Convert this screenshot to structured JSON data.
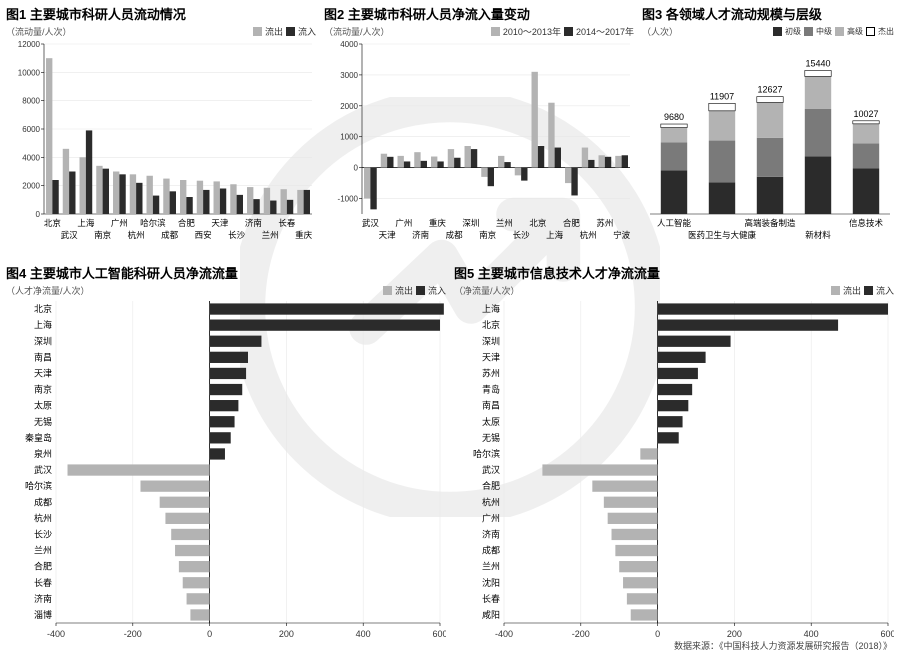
{
  "colors": {
    "light": "#b3b3b3",
    "dark": "#2b2b2b",
    "mid": "#7a7a7a",
    "outline": "#000000",
    "bg": "#ffffff",
    "grid": "#e8e8e8",
    "text": "#000000"
  },
  "fig1": {
    "title": "图1 主要城市科研人员流动情况",
    "ylabel": "（流动量/人次）",
    "legend": {
      "out": "流出",
      "in": "流入"
    },
    "ylim": [
      0,
      12000
    ],
    "ytick_step": 2000,
    "bar_width": 0.38,
    "categories": [
      "北京",
      "武汉",
      "上海",
      "南京",
      "广州",
      "杭州",
      "哈尔滨",
      "成都",
      "合肥",
      "西安",
      "天津",
      "长沙",
      "济南",
      "兰州",
      "长春",
      "重庆"
    ],
    "out": [
      11000,
      4600,
      4000,
      3400,
      3000,
      2800,
      2700,
      2500,
      2400,
      2350,
      2300,
      2100,
      1900,
      1850,
      1750,
      1700
    ],
    "in": [
      2400,
      3000,
      5900,
      3200,
      2800,
      2200,
      1300,
      1600,
      1200,
      1700,
      1800,
      1350,
      1050,
      950,
      1000,
      1700
    ]
  },
  "fig2": {
    "title": "图2 主要城市科研人员净流入量变动",
    "ylabel": "（流动量/人次）",
    "legend": {
      "a": "2010～2013年",
      "b": "2014～2017年"
    },
    "ylim": [
      -1500,
      4000
    ],
    "ytick_step": 1000,
    "yticks": [
      -1000,
      0,
      1000,
      2000,
      3000,
      4000
    ],
    "bar_width": 0.38,
    "categories": [
      "武汉",
      "天津",
      "广州",
      "济南",
      "重庆",
      "成都",
      "深圳",
      "南京",
      "兰州",
      "长沙",
      "北京",
      "上海",
      "合肥",
      "杭州",
      "苏州",
      "宁波"
    ],
    "a": [
      -1000,
      450,
      380,
      500,
      360,
      600,
      700,
      -300,
      380,
      -250,
      3100,
      2100,
      -500,
      650,
      400,
      380
    ],
    "b": [
      -1350,
      350,
      200,
      220,
      200,
      320,
      600,
      -600,
      180,
      -420,
      700,
      650,
      -900,
      250,
      350,
      400
    ]
  },
  "fig3": {
    "title": "图3  各领域人才流动规模与层级",
    "ylabel": "（人次）",
    "legend": {
      "l1": "初级",
      "l2": "中级",
      "l3": "高级",
      "l4": "杰出"
    },
    "categories": [
      "人工智能",
      "医药卫生与大健康",
      "高端装备制造",
      "新材料",
      "信息技术"
    ],
    "totals_labels": [
      "9680",
      "11907",
      "12627",
      "15440",
      "10027"
    ],
    "totals": [
      9680,
      11907,
      12627,
      15440,
      10027
    ],
    "ylim": [
      0,
      17000
    ],
    "bar_width": 0.55,
    "stacks": [
      [
        4700,
        3000,
        1600,
        380
      ],
      [
        3400,
        4500,
        3200,
        807
      ],
      [
        4000,
        4200,
        3800,
        627
      ],
      [
        6200,
        5100,
        3500,
        640
      ],
      [
        4900,
        2700,
        2100,
        327
      ]
    ],
    "stack_colors": [
      "#2b2b2b",
      "#7a7a7a",
      "#b3b3b3",
      "#ffffff"
    ],
    "outline_color": "#000000"
  },
  "fig4": {
    "title": "图4 主要城市人工智能科研人员净流流量",
    "ylabel": "（人才净流量/人次）",
    "legend": {
      "out": "流出",
      "in": "流入"
    },
    "xlim": [
      -400,
      600
    ],
    "xtick_step": 200,
    "bar_height": 0.7,
    "items": [
      {
        "city": "北京",
        "v": 610,
        "dir": "in"
      },
      {
        "city": "上海",
        "v": 600,
        "dir": "in"
      },
      {
        "city": "深圳",
        "v": 135,
        "dir": "in"
      },
      {
        "city": "南昌",
        "v": 100,
        "dir": "in"
      },
      {
        "city": "天津",
        "v": 95,
        "dir": "in"
      },
      {
        "city": "南京",
        "v": 85,
        "dir": "in"
      },
      {
        "city": "太原",
        "v": 75,
        "dir": "in"
      },
      {
        "city": "无锡",
        "v": 65,
        "dir": "in"
      },
      {
        "city": "秦皇岛",
        "v": 55,
        "dir": "in"
      },
      {
        "city": "泉州",
        "v": 40,
        "dir": "in"
      },
      {
        "city": "武汉",
        "v": -370,
        "dir": "out"
      },
      {
        "city": "哈尔滨",
        "v": -180,
        "dir": "out"
      },
      {
        "city": "成都",
        "v": -130,
        "dir": "out"
      },
      {
        "city": "杭州",
        "v": -115,
        "dir": "out"
      },
      {
        "city": "长沙",
        "v": -100,
        "dir": "out"
      },
      {
        "city": "兰州",
        "v": -90,
        "dir": "out"
      },
      {
        "city": "合肥",
        "v": -80,
        "dir": "out"
      },
      {
        "city": "长春",
        "v": -70,
        "dir": "out"
      },
      {
        "city": "济南",
        "v": -60,
        "dir": "out"
      },
      {
        "city": "淄博",
        "v": -50,
        "dir": "out"
      }
    ]
  },
  "fig5": {
    "title": "图5 主要城市信息技术人才净流流量",
    "ylabel": "（净流量/人次）",
    "legend": {
      "out": "流出",
      "in": "流入"
    },
    "xlim": [
      -400,
      600
    ],
    "xtick_step": 200,
    "bar_height": 0.7,
    "items": [
      {
        "city": "上海",
        "v": 600,
        "dir": "in"
      },
      {
        "city": "北京",
        "v": 470,
        "dir": "in"
      },
      {
        "city": "深圳",
        "v": 190,
        "dir": "in"
      },
      {
        "city": "天津",
        "v": 125,
        "dir": "in"
      },
      {
        "city": "苏州",
        "v": 105,
        "dir": "in"
      },
      {
        "city": "青岛",
        "v": 90,
        "dir": "in"
      },
      {
        "city": "南昌",
        "v": 80,
        "dir": "in"
      },
      {
        "city": "太原",
        "v": 65,
        "dir": "in"
      },
      {
        "city": "无锡",
        "v": 55,
        "dir": "in"
      },
      {
        "city": "哈尔滨",
        "v": -45,
        "dir": "out"
      },
      {
        "city": "武汉",
        "v": -300,
        "dir": "out"
      },
      {
        "city": "合肥",
        "v": -170,
        "dir": "out"
      },
      {
        "city": "杭州",
        "v": -140,
        "dir": "out"
      },
      {
        "city": "广州",
        "v": -130,
        "dir": "out"
      },
      {
        "city": "济南",
        "v": -120,
        "dir": "out"
      },
      {
        "city": "成都",
        "v": -110,
        "dir": "out"
      },
      {
        "city": "兰州",
        "v": -100,
        "dir": "out"
      },
      {
        "city": "沈阳",
        "v": -90,
        "dir": "out"
      },
      {
        "city": "长春",
        "v": -80,
        "dir": "out"
      },
      {
        "city": "咸阳",
        "v": -70,
        "dir": "out"
      }
    ]
  },
  "source": "数据来源：《中国科技人力资源发展研究报告（2018）》"
}
